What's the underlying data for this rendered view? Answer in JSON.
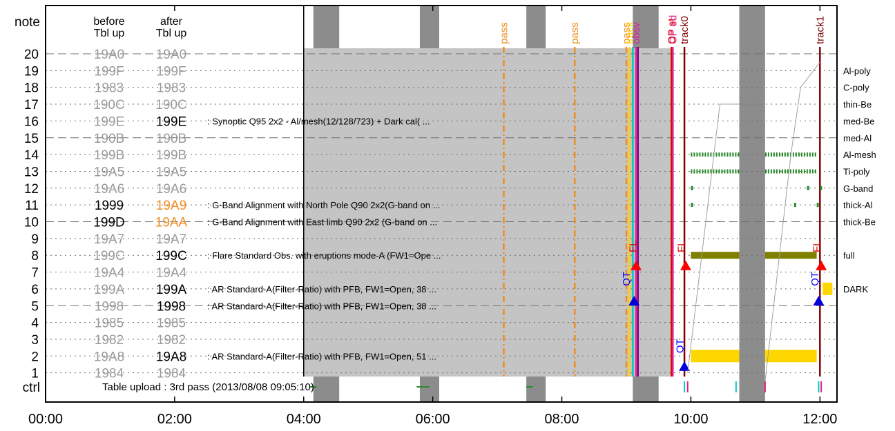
{
  "chart_data": {
    "type": "timeline",
    "x_unit": "hours",
    "xlim": [
      0,
      12.2
    ],
    "x_ticks": [
      {
        "v": 0,
        "label": "00:00"
      },
      {
        "v": 2,
        "label": "02:00"
      },
      {
        "v": 4,
        "label": "04:00"
      },
      {
        "v": 6,
        "label": "06:00"
      },
      {
        "v": 8,
        "label": "08:00"
      },
      {
        "v": 10,
        "label": "10:00"
      },
      {
        "v": 12,
        "label": "12:00"
      }
    ],
    "y_top_label": "note",
    "y_bottom_label": "ctrl",
    "col_before": "before\nTbl up",
    "col_after": "after\nTbl up",
    "rows": [
      {
        "y": 20,
        "before": "19A0",
        "after": "19A0",
        "after_style": "gray",
        "dashed": true
      },
      {
        "y": 19,
        "before": "199F",
        "after": "199F",
        "after_style": "gray"
      },
      {
        "y": 18,
        "before": "1983",
        "after": "1983",
        "after_style": "gray"
      },
      {
        "y": 17,
        "before": "190C",
        "after": "190C",
        "after_style": "gray"
      },
      {
        "y": 16,
        "before": "199E",
        "after": "199E",
        "after_style": "black",
        "desc": ": Synoptic Q95 2x2 - Al/mesh(12/128/723) + Dark cal( ..."
      },
      {
        "y": 15,
        "before": "190B",
        "after": "190B",
        "after_style": "gray",
        "dashed": true
      },
      {
        "y": 14,
        "before": "199B",
        "after": "199B",
        "after_style": "gray"
      },
      {
        "y": 13,
        "before": "19A5",
        "after": "19A5",
        "after_style": "gray"
      },
      {
        "y": 12,
        "before": "19A6",
        "after": "19A6",
        "after_style": "gray"
      },
      {
        "y": 11,
        "before": "1999",
        "after": "19A9",
        "after_style": "orange",
        "before_black": true,
        "desc": ": G-Band Alignment with North Pole Q90 2x2(G-band on ..."
      },
      {
        "y": 10,
        "before": "199D",
        "after": "19AA",
        "after_style": "orange",
        "before_black": true,
        "dashed": true,
        "desc": ": G-Band Alignment with East limb Q90 2x2 (G-band on ..."
      },
      {
        "y": 9,
        "before": "19A7",
        "after": "19A7",
        "after_style": "gray"
      },
      {
        "y": 8,
        "before": "199C",
        "after": "199C",
        "after_style": "black",
        "desc": ": Flare Standard Obs. with eruptions mode-A (FW1=Ope ..."
      },
      {
        "y": 7,
        "before": "19A4",
        "after": "19A4",
        "after_style": "gray"
      },
      {
        "y": 6,
        "before": "199A",
        "after": "199A",
        "after_style": "black",
        "desc": ": AR Standard-A(Filter-Ratio) with PFB, FW1=Open, 38 ..."
      },
      {
        "y": 5,
        "before": "1998",
        "after": "1998",
        "after_style": "black",
        "dashed": true,
        "desc": ": AR Standard-A(Filter-Ratio) with PFB, FW1=Open, 38 ..."
      },
      {
        "y": 4,
        "before": "1985",
        "after": "1985",
        "after_style": "gray"
      },
      {
        "y": 3,
        "before": "1982",
        "after": "1982",
        "after_style": "gray"
      },
      {
        "y": 2,
        "before": "19A8",
        "after": "19A8",
        "after_style": "black",
        "desc": ": AR Standard-A(Filter-Ratio) with PFB, FW1=Open, 51 ..."
      },
      {
        "y": 1,
        "before": "1984",
        "after": "1984",
        "after_style": "gray"
      }
    ],
    "right_labels": [
      {
        "y": 19,
        "text": "Al-poly"
      },
      {
        "y": 18,
        "text": "C-poly"
      },
      {
        "y": 17,
        "text": "thin-Be"
      },
      {
        "y": 16,
        "text": "med-Be"
      },
      {
        "y": 15,
        "text": "med-Al"
      },
      {
        "y": 14,
        "text": "Al-mesh"
      },
      {
        "y": 13,
        "text": "Ti-poly"
      },
      {
        "y": 12,
        "text": "G-band"
      },
      {
        "y": 11,
        "text": "thick-Al"
      },
      {
        "y": 10,
        "text": "thick-Be"
      },
      {
        "y": 8,
        "text": "full"
      },
      {
        "y": 6,
        "text": "DARK"
      }
    ],
    "ctrl_text": "Table upload : 3rd pass (2013/08/08 09:05:10)",
    "night_bands": [
      [
        4.15,
        4.55
      ],
      [
        5.8,
        6.1
      ],
      [
        7.45,
        7.75
      ],
      [
        9.1,
        9.5
      ],
      [
        10.75,
        11.15
      ]
    ],
    "obs_region": [
      4.0,
      9.7
    ],
    "pass_lines": [
      {
        "x": 7.1,
        "label": "pass"
      },
      {
        "x": 8.2,
        "label": "pass"
      },
      {
        "x": 9.0,
        "label": "pass"
      }
    ],
    "event_lines": [
      {
        "x": 9.05,
        "label": "track",
        "color": "#ffd200"
      },
      {
        "x": 9.1,
        "label": "",
        "color": "#00c8c8"
      },
      {
        "x": 9.15,
        "label": "obsv",
        "color": "#e0209a"
      },
      {
        "x": 9.18,
        "label": "",
        "color": "#800080"
      },
      {
        "x": 9.7,
        "label": "OP st",
        "color": "#e00000"
      },
      {
        "x": 9.72,
        "label": "OP ed",
        "color": "#e02080"
      },
      {
        "x": 9.9,
        "label": "track0",
        "color": "#800000"
      },
      {
        "x": 12.0,
        "label": "track1",
        "color": "#800000"
      }
    ],
    "marker_labels": [
      {
        "x": 9.1,
        "y": 8.5,
        "text": "FL",
        "color": "#e00000"
      },
      {
        "x": 9.85,
        "y": 8.5,
        "text": "FL",
        "color": "#e00000"
      },
      {
        "x": 11.95,
        "y": 8.5,
        "text": "FL",
        "color": "#e00000"
      },
      {
        "x": 9.0,
        "y": 6.5,
        "text": "QT",
        "color": "#0000ff"
      },
      {
        "x": 9.83,
        "y": 2.5,
        "text": "QT",
        "color": "#0000ff"
      },
      {
        "x": 11.92,
        "y": 6.5,
        "text": "QT",
        "color": "#0000ff"
      }
    ]
  }
}
